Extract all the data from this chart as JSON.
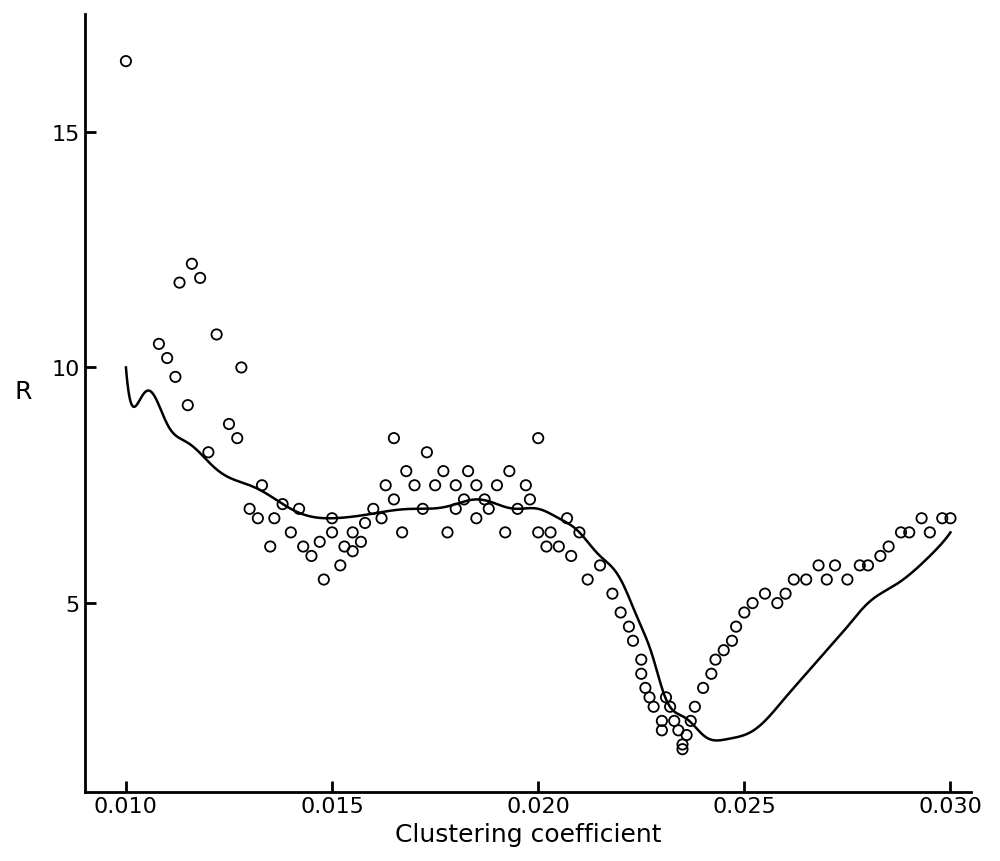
{
  "scatter_x": [
    0.01,
    0.0108,
    0.011,
    0.0112,
    0.0113,
    0.0115,
    0.0116,
    0.0118,
    0.012,
    0.0122,
    0.0125,
    0.0127,
    0.0128,
    0.013,
    0.0132,
    0.0133,
    0.0135,
    0.0136,
    0.0138,
    0.014,
    0.0142,
    0.0143,
    0.0145,
    0.0147,
    0.0148,
    0.015,
    0.015,
    0.0152,
    0.0153,
    0.0155,
    0.0155,
    0.0157,
    0.0158,
    0.016,
    0.0162,
    0.0163,
    0.0165,
    0.0165,
    0.0167,
    0.0168,
    0.017,
    0.0172,
    0.0173,
    0.0175,
    0.0177,
    0.0178,
    0.018,
    0.018,
    0.0182,
    0.0183,
    0.0185,
    0.0185,
    0.0187,
    0.0188,
    0.019,
    0.0192,
    0.0193,
    0.0195,
    0.0197,
    0.0198,
    0.02,
    0.02,
    0.0202,
    0.0203,
    0.0205,
    0.0207,
    0.0208,
    0.021,
    0.0212,
    0.0215,
    0.0218,
    0.022,
    0.0222,
    0.0223,
    0.0225,
    0.0225,
    0.0226,
    0.0227,
    0.0228,
    0.023,
    0.023,
    0.0231,
    0.0232,
    0.0233,
    0.0234,
    0.0235,
    0.0235,
    0.0236,
    0.0237,
    0.0238,
    0.024,
    0.0242,
    0.0243,
    0.0245,
    0.0247,
    0.0248,
    0.025,
    0.0252,
    0.0255,
    0.0258,
    0.026,
    0.0262,
    0.0265,
    0.0268,
    0.027,
    0.0272,
    0.0275,
    0.0278,
    0.028,
    0.0283,
    0.0285,
    0.0288,
    0.029,
    0.0293,
    0.0295,
    0.0298,
    0.03
  ],
  "scatter_y": [
    16.5,
    10.5,
    10.2,
    9.8,
    11.8,
    9.2,
    12.2,
    11.9,
    8.2,
    10.7,
    8.8,
    8.5,
    10.0,
    7.0,
    6.8,
    7.5,
    6.2,
    6.8,
    7.1,
    6.5,
    7.0,
    6.2,
    6.0,
    6.3,
    5.5,
    6.5,
    6.8,
    5.8,
    6.2,
    6.5,
    6.1,
    6.3,
    6.7,
    7.0,
    6.8,
    7.5,
    7.2,
    8.5,
    6.5,
    7.8,
    7.5,
    7.0,
    8.2,
    7.5,
    7.8,
    6.5,
    7.0,
    7.5,
    7.2,
    7.8,
    6.8,
    7.5,
    7.2,
    7.0,
    7.5,
    6.5,
    7.8,
    7.0,
    7.5,
    7.2,
    6.5,
    8.5,
    6.2,
    6.5,
    6.2,
    6.8,
    6.0,
    6.5,
    5.5,
    5.8,
    5.2,
    4.8,
    4.5,
    4.2,
    3.8,
    3.5,
    3.2,
    3.0,
    2.8,
    2.5,
    2.3,
    3.0,
    2.8,
    2.5,
    2.3,
    2.0,
    1.9,
    2.2,
    2.5,
    2.8,
    3.2,
    3.5,
    3.8,
    4.0,
    4.2,
    4.5,
    4.8,
    5.0,
    5.2,
    5.0,
    5.2,
    5.5,
    5.5,
    5.8,
    5.5,
    5.8,
    5.5,
    5.8,
    5.8,
    6.0,
    6.2,
    6.5,
    6.5,
    6.8,
    6.5,
    6.8,
    6.8
  ],
  "spline_x": [
    0.01,
    0.0105,
    0.0108,
    0.011,
    0.0113,
    0.012,
    0.013,
    0.014,
    0.015,
    0.016,
    0.017,
    0.018,
    0.0185,
    0.019,
    0.0195,
    0.02,
    0.0205,
    0.021,
    0.0215,
    0.022,
    0.0225,
    0.0228,
    0.023,
    0.0235,
    0.024,
    0.0245,
    0.025,
    0.0255,
    0.026,
    0.0265,
    0.027,
    0.0275,
    0.028,
    0.0285,
    0.029,
    0.0295,
    0.03
  ],
  "spline_y": [
    10.0,
    9.5,
    9.2,
    8.8,
    8.5,
    8.0,
    7.5,
    7.0,
    6.8,
    6.9,
    7.0,
    7.1,
    7.2,
    7.1,
    7.0,
    7.0,
    6.8,
    6.5,
    6.0,
    5.5,
    4.5,
    3.8,
    3.2,
    2.6,
    2.2,
    2.1,
    2.2,
    2.5,
    3.0,
    3.5,
    4.0,
    4.5,
    5.0,
    5.3,
    5.6,
    6.0,
    6.5
  ],
  "xlim": [
    0.009,
    0.0305
  ],
  "ylim": [
    1.0,
    17.5
  ],
  "xticks": [
    0.01,
    0.015,
    0.02,
    0.025,
    0.03
  ],
  "yticks": [
    5,
    10,
    15
  ],
  "xlabel": "Clustering coefficient",
  "ylabel": "R",
  "marker_color": "black",
  "marker_size": 55,
  "line_color": "black",
  "line_width": 1.8,
  "background_color": "white",
  "font_size_labels": 18,
  "font_size_ticks": 16
}
